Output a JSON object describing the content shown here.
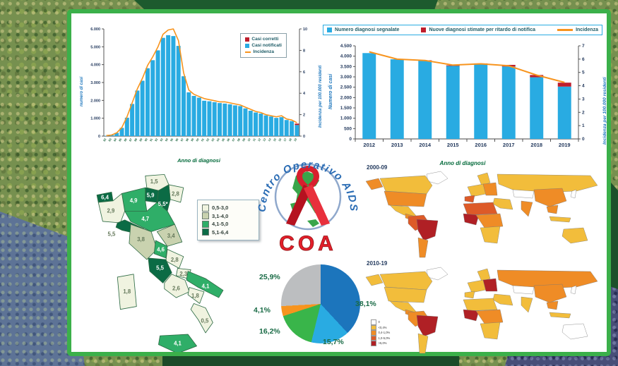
{
  "logo": {
    "circle_text": "Centro Operativo AIDS",
    "acronym": "COA"
  },
  "chart_data": [
    {
      "id": "casi_aids_per_anno",
      "type": "bar",
      "xlabel": "Anno di diagnosi",
      "ylabel_left": "numero di casi",
      "ylabel_right": "Incidenza per 100.000 residenti",
      "x": [
        "82",
        "83",
        "84",
        "85",
        "86",
        "87",
        "88",
        "89",
        "90",
        "91",
        "92",
        "93",
        "94",
        "95",
        "96",
        "97",
        "98",
        "99",
        "00",
        "01",
        "02",
        "03",
        "04",
        "05",
        "06",
        "07",
        "08",
        "09",
        "10",
        "11",
        "12",
        "13",
        "14",
        "15",
        "16",
        "17",
        "18",
        "19"
      ],
      "legend": [
        {
          "label": "Casi corretti",
          "color": "#be1e2d",
          "marker": "square"
        },
        {
          "label": "Casi notificati",
          "color": "#29abe2",
          "marker": "square"
        },
        {
          "label": "Incidenza",
          "color": "#f7941e",
          "marker": "line"
        }
      ],
      "bars": [
        {
          "name": "Casi notificati",
          "color": "#29abe2",
          "values": [
            20,
            60,
            180,
            460,
            1030,
            1800,
            2550,
            3100,
            3800,
            4250,
            4800,
            5500,
            5650,
            5600,
            5050,
            3350,
            2450,
            2250,
            2150,
            1980,
            1950,
            1900,
            1850,
            1820,
            1780,
            1720,
            1680,
            1550,
            1420,
            1320,
            1260,
            1160,
            1100,
            1020,
            1060,
            900,
            840,
            620
          ]
        },
        {
          "name": "Casi corretti",
          "color": "#be1e2d",
          "values": [
            0,
            0,
            0,
            0,
            0,
            0,
            0,
            0,
            0,
            0,
            0,
            0,
            0,
            0,
            0,
            0,
            0,
            0,
            0,
            0,
            0,
            0,
            0,
            0,
            0,
            0,
            0,
            0,
            0,
            0,
            0,
            0,
            0,
            0,
            0,
            0,
            0,
            80
          ]
        }
      ],
      "line": {
        "name": "Incidenza",
        "color": "#f7941e",
        "values": [
          0.05,
          0.1,
          0.3,
          0.8,
          1.8,
          3.1,
          4.4,
          5.4,
          6.6,
          7.4,
          8.3,
          9.5,
          9.9,
          10,
          8.9,
          5.9,
          4.3,
          3.9,
          3.7,
          3.5,
          3.4,
          3.3,
          3.2,
          3.2,
          3.1,
          3.0,
          2.9,
          2.7,
          2.5,
          2.3,
          2.2,
          2.0,
          1.9,
          1.8,
          1.9,
          1.6,
          1.5,
          1.25
        ]
      },
      "ylim_left": [
        0,
        6000
      ],
      "yticks_left": [
        "0",
        "1.000",
        "2.000",
        "3.000",
        "4.000",
        "5.000",
        "6.000"
      ],
      "ylim_right": [
        0,
        10
      ],
      "yticks_right": [
        "0",
        "2",
        "4",
        "6",
        "8",
        "10"
      ]
    },
    {
      "id": "nuove_diagnosi_2012_2019",
      "type": "bar",
      "xlabel": "Anno di diagnosi",
      "ylabel_left": "Numero di casi",
      "ylabel_right": "Incidenza per 100.000 residenti",
      "x": [
        "2012",
        "2013",
        "2014",
        "2015",
        "2016",
        "2017",
        "2018",
        "2019"
      ],
      "legend": [
        {
          "label": "Numero diagnosi segnalate",
          "color": "#29abe2",
          "marker": "square"
        },
        {
          "label": "Nuove diagnosi stimate per ritardo di notifica",
          "color": "#be1e2d",
          "marker": "square"
        },
        {
          "label": "Incidenza",
          "color": "#f7941e",
          "marker": "line"
        }
      ],
      "bars": [
        {
          "name": "Numero diagnosi segnalate",
          "color": "#29abe2",
          "values": [
            4150,
            3850,
            3780,
            3530,
            3600,
            3500,
            2980,
            2530
          ]
        },
        {
          "name": "Nuove diagnosi stimate per ritardo di notifica",
          "color": "#be1e2d",
          "values": [
            0,
            0,
            20,
            30,
            50,
            80,
            110,
            190
          ]
        }
      ],
      "line": {
        "name": "Incidenza",
        "color": "#f7941e",
        "values": [
          6.55,
          6.0,
          5.9,
          5.55,
          5.65,
          5.5,
          4.8,
          4.25
        ]
      },
      "ylim_left": [
        0,
        4500
      ],
      "yticks_left": [
        "0",
        "500",
        "1.000",
        "1.500",
        "2.000",
        "2.500",
        "3.000",
        "3.500",
        "4.000",
        "4.500"
      ],
      "ylim_right": [
        0,
        7
      ],
      "yticks_right": [
        "0",
        "1",
        "2",
        "3",
        "4",
        "5",
        "6",
        "7"
      ]
    },
    {
      "id": "pie_distribution",
      "type": "pie",
      "slices": [
        {
          "label": "38,1%",
          "value": 38.1,
          "color": "#1c75bc"
        },
        {
          "label": "15,7%",
          "value": 15.7,
          "color": "#29abe2"
        },
        {
          "label": "16,2%",
          "value": 16.2,
          "color": "#39b54a"
        },
        {
          "label": "4,1%",
          "value": 4.1,
          "color": "#f7941e"
        },
        {
          "label": "25,9%",
          "value": 25.9,
          "color": "#bcbec0"
        }
      ]
    },
    {
      "id": "italia_incidenza_regioni",
      "type": "heatmap",
      "legend": [
        {
          "label": "0,5-3,0",
          "color": "#f0f3e0"
        },
        {
          "label": "3,1-4,0",
          "color": "#c9d2af"
        },
        {
          "label": "4,1-5,0",
          "color": "#2fae68"
        },
        {
          "label": "5,1-6,4",
          "color": "#0b6b45"
        }
      ],
      "regions": [
        {
          "name": "P.A. Bolzano",
          "label": "1,5",
          "bucket": 0
        },
        {
          "name": "P.A. Trento",
          "label": "5,9",
          "bucket": 3
        },
        {
          "name": "Friuli-Venezia Giulia",
          "label": "2,8",
          "bucket": 0
        },
        {
          "name": "Veneto",
          "label": "5,5*",
          "bucket": 3
        },
        {
          "name": "Lombardia",
          "label": "4,9",
          "bucket": 2
        },
        {
          "name": "Valle d'Aosta",
          "label": "6,4",
          "bucket": 3
        },
        {
          "name": "Piemonte",
          "label": "2,9",
          "bucket": 0
        },
        {
          "name": "Liguria",
          "label": "5,5",
          "bucket": 3,
          "label_outside": true
        },
        {
          "name": "Emilia-Romagna",
          "label": "4,7",
          "bucket": 2
        },
        {
          "name": "Toscana",
          "label": "3,8",
          "bucket": 1
        },
        {
          "name": "Marche",
          "label": "3,4",
          "bucket": 1
        },
        {
          "name": "Umbria",
          "label": "4,6",
          "bucket": 2
        },
        {
          "name": "Abruzzo",
          "label": "2,8",
          "bucket": 0
        },
        {
          "name": "Lazio",
          "label": "5,5",
          "bucket": 3
        },
        {
          "name": "Molise",
          "label": "2,3",
          "bucket": 0
        },
        {
          "name": "Campania",
          "label": "2,6",
          "bucket": 0
        },
        {
          "name": "Puglia",
          "label": "4,1",
          "bucket": 2
        },
        {
          "name": "Basilicata",
          "label": "1,8",
          "bucket": 0
        },
        {
          "name": "Calabria",
          "label": "0,5",
          "bucket": 0
        },
        {
          "name": "Sicilia",
          "label": "4,1",
          "bucket": 2
        },
        {
          "name": "Sardegna",
          "label": "1,8",
          "bucket": 0
        }
      ]
    },
    {
      "id": "world_prevalence_maps",
      "type": "heatmap",
      "palette": {
        "none": "#ffffff",
        "yellow": "#f2bd3b",
        "orange": "#ef8c26",
        "red": "#dd5a28",
        "darkred": "#b02025"
      },
      "legend": [
        {
          "label": "0",
          "color": "#ffffff"
        },
        {
          "label": "<0,4%",
          "color": "#f2bd3b"
        },
        {
          "label": "0,4-1,0%",
          "color": "#ef8c26"
        },
        {
          "label": "1,0-5,0%",
          "color": "#dd5a28"
        },
        {
          "label": ">5,0%",
          "color": "#b02025"
        }
      ],
      "maps": [
        {
          "title": "2000-09",
          "fills": {
            "greenland": "none",
            "alaska": "orange",
            "canada": "yellow",
            "usa": "orange",
            "mexico": "yellow",
            "central_america": "orange",
            "northern_sa": "red",
            "brazil": "darkred",
            "southern_cone": "orange",
            "scandinavia": "yellow",
            "west_europe": "yellow",
            "iberia": "red",
            "east_europe": "orange",
            "russia": "yellow",
            "central_asia": "none",
            "middle_east": "yellow",
            "north_africa": "red",
            "west_africa": "darkred",
            "central_africa": "orange",
            "southern_africa": "yellow",
            "india": "orange",
            "china": "orange",
            "se_asia": "orange",
            "indonesia": "yellow",
            "japan": "none",
            "australia": "yellow"
          }
        },
        {
          "title": "2010-19",
          "fills": {
            "greenland": "none",
            "alaska": "yellow",
            "canada": "yellow",
            "usa": "yellow",
            "mexico": "yellow",
            "central_america": "orange",
            "northern_sa": "orange",
            "brazil": "darkred",
            "southern_cone": "yellow",
            "scandinavia": "yellow",
            "west_europe": "yellow",
            "iberia": "yellow",
            "east_europe": "darkred",
            "russia": "orange",
            "central_asia": "none",
            "middle_east": "yellow",
            "north_africa": "yellow",
            "west_africa": "darkred",
            "central_africa": "orange",
            "southern_africa": "yellow",
            "india": "yellow",
            "china": "orange",
            "se_asia": "orange",
            "indonesia": "yellow",
            "japan": "none",
            "australia": "none"
          }
        }
      ]
    }
  ]
}
